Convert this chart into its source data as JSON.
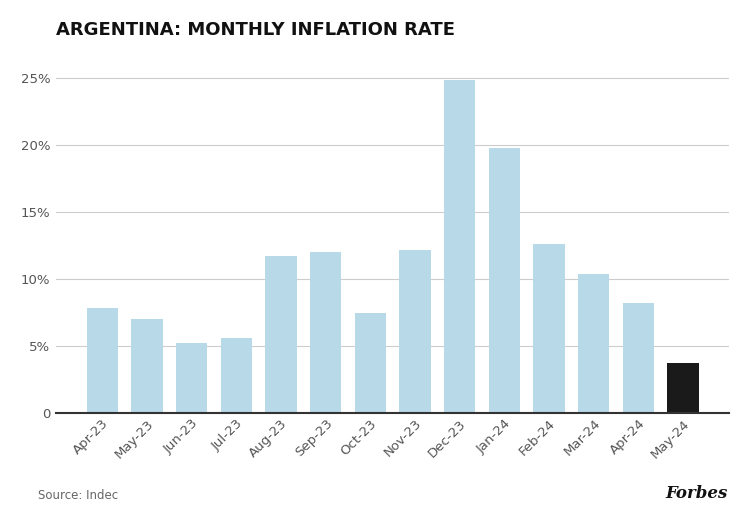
{
  "title": "ARGENTINA: MONTHLY INFLATION RATE",
  "categories": [
    "Apr-23",
    "May-23",
    "Jun-23",
    "Jul-23",
    "Aug-23",
    "Sep-23",
    "Oct-23",
    "Nov-23",
    "Dec-23",
    "Jan-24",
    "Feb-24",
    "Mar-24",
    "Apr-24",
    "May-24"
  ],
  "values": [
    7.8,
    7.0,
    5.2,
    5.6,
    11.7,
    12.0,
    7.5,
    12.2,
    24.9,
    19.8,
    12.6,
    10.4,
    8.2,
    3.7
  ],
  "bar_colors": [
    "#b8d9e8",
    "#b8d9e8",
    "#b8d9e8",
    "#b8d9e8",
    "#b8d9e8",
    "#b8d9e8",
    "#b8d9e8",
    "#b8d9e8",
    "#b8d9e8",
    "#b8d9e8",
    "#b8d9e8",
    "#b8d9e8",
    "#b8d9e8",
    "#1a1a1a"
  ],
  "yticks": [
    0,
    5,
    10,
    15,
    20,
    25
  ],
  "ytick_labels": [
    "0",
    "5%",
    "10%",
    "15%",
    "20%",
    "25%"
  ],
  "ylim": [
    0,
    27
  ],
  "source_text": "Source: Indec",
  "forbes_text": "Forbes",
  "background_color": "#ffffff",
  "title_fontsize": 13,
  "tick_fontsize": 9.5,
  "source_fontsize": 8.5,
  "forbes_fontsize": 12,
  "bar_width": 0.7,
  "xlabel_rotation": 45,
  "grid_color": "#cccccc",
  "grid_linewidth": 0.8,
  "spine_color": "#333333"
}
